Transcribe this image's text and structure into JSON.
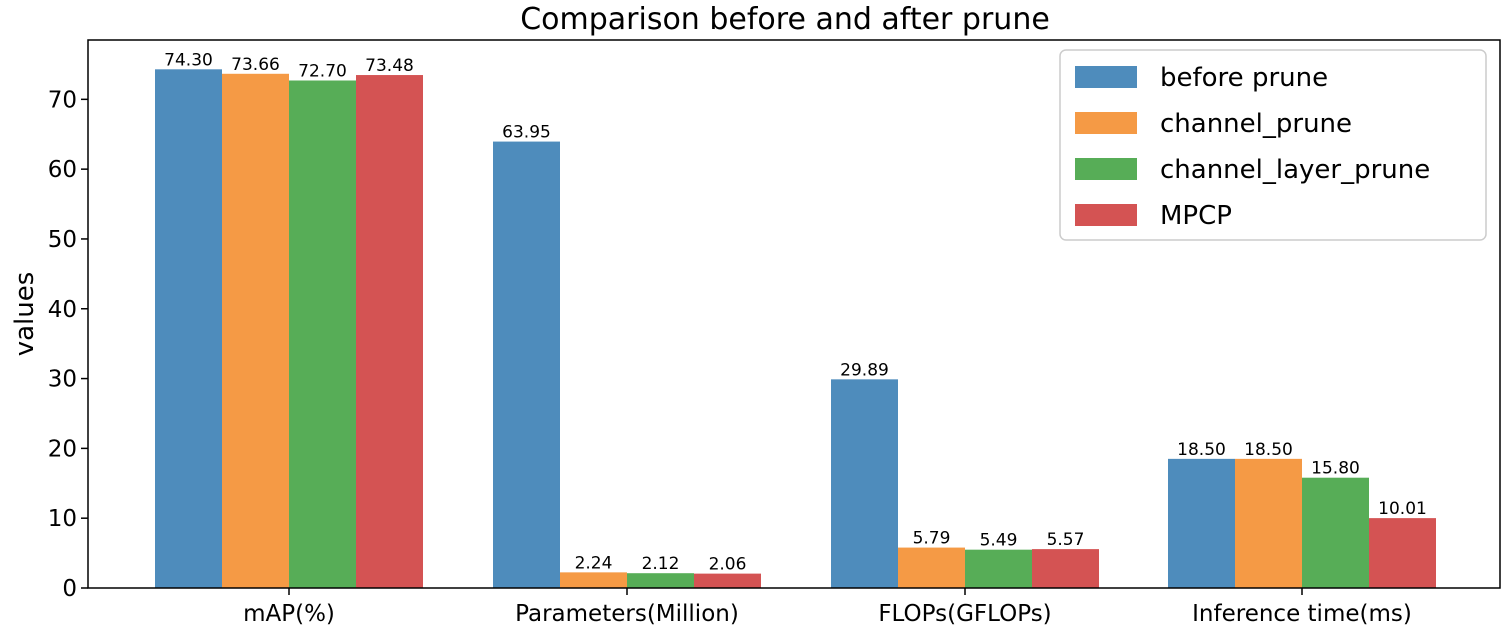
{
  "chart_data": {
    "type": "bar",
    "title": "Comparison before and after prune",
    "ylabel": "values",
    "xlabel": "",
    "categories": [
      "mAP(%)",
      "Parameters(Million)",
      "FLOPs(GFLOPs)",
      "Inference time(ms)"
    ],
    "ylim": [
      0,
      78.5
    ],
    "yticks": [
      0,
      10,
      20,
      30,
      40,
      50,
      60,
      70
    ],
    "grid": false,
    "legend_position": "top-right",
    "series": [
      {
        "name": "before prune",
        "color": "#4e8cbc",
        "values": [
          74.3,
          63.95,
          29.89,
          18.5
        ],
        "labels": [
          "74.30",
          "63.95",
          "29.89",
          "18.50"
        ]
      },
      {
        "name": "channel_prune",
        "color": "#f59a45",
        "values": [
          73.66,
          2.24,
          5.79,
          18.5
        ],
        "labels": [
          "73.66",
          "2.24",
          "5.79",
          "18.50"
        ]
      },
      {
        "name": "channel_layer_prune",
        "color": "#57ad57",
        "values": [
          72.7,
          2.12,
          5.49,
          15.8
        ],
        "labels": [
          "72.70",
          "2.12",
          "5.49",
          "15.80"
        ]
      },
      {
        "name": "MPCP",
        "color": "#d45353",
        "values": [
          73.48,
          2.06,
          5.57,
          10.01
        ],
        "labels": [
          "73.48",
          "2.06",
          "5.57",
          "10.01"
        ]
      }
    ]
  }
}
